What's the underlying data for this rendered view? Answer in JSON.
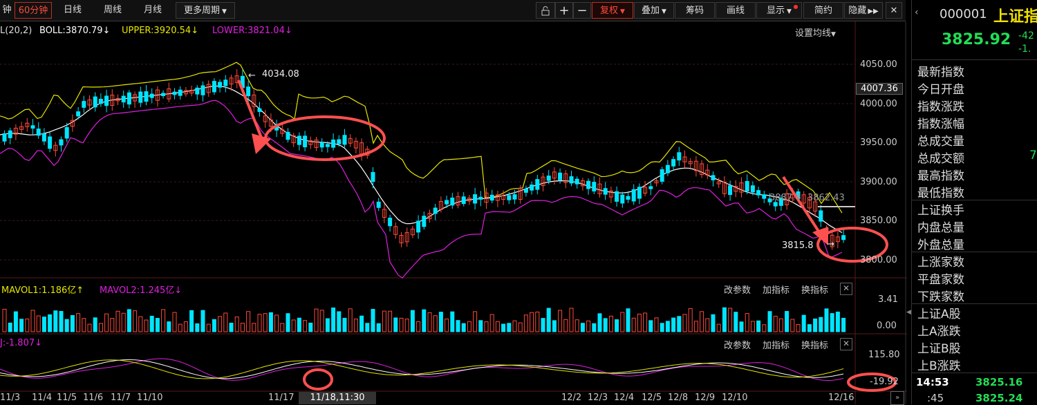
{
  "toolbar": {
    "periods": [
      "钟",
      "60分钟",
      "日线",
      "周线",
      "月线",
      "更多周期"
    ],
    "selected_period": "60分钟",
    "tools": [
      "复权",
      "叠加",
      "筹码",
      "画线",
      "显示",
      "简约",
      "隐藏"
    ]
  },
  "boll": {
    "name_prefix": "L(20,2)",
    "boll": "BOLL:3870.79",
    "upper": "UPPER:3920.54",
    "lower": "LOWER:3821.04",
    "arrow": "↓",
    "settings": "设置均线"
  },
  "price_axis": [
    "4050.00",
    "4000.00",
    "3950.00",
    "3900.00",
    "3850.00",
    "3800.00"
  ],
  "price_current_tag": "4007.36",
  "annotations": {
    "high": "4034.08",
    "low": "3815.8",
    "mid": "3887.4",
    "mid2": "3862.43"
  },
  "volume": {
    "mavol1": "MAVOL1:1.186亿",
    "mavol2": "MAVOL2:1.245亿",
    "axis": [
      "3.41",
      "0.00"
    ],
    "tools": [
      "改参数",
      "加指标",
      "换指标"
    ]
  },
  "osc": {
    "label": "J:-1.807",
    "axis": [
      "115.80",
      "-19.92"
    ],
    "tools": [
      "改参数",
      "加指标",
      "换指标"
    ]
  },
  "date_axis": [
    "11/3",
    "11/4",
    "11/5",
    "11/6",
    "11/7",
    "11/10",
    "11/17",
    "12/2",
    "12/3",
    "12/4",
    "12/5",
    "12/8",
    "12/9",
    "12/10",
    "12/16"
  ],
  "crosshair_time": "11/18,11:30",
  "quote": {
    "code": "000001",
    "name": "上证指",
    "price": "3825.92",
    "change": "-42",
    "pct": "-1.",
    "fields": [
      {
        "label": "最新指数",
        "value": ""
      },
      {
        "label": "今日开盘",
        "value": ""
      },
      {
        "label": "指数涨跌",
        "value": ""
      },
      {
        "label": "指数涨幅",
        "value": ""
      },
      {
        "label": "总成交量",
        "value": ""
      },
      {
        "label": "总成交额",
        "value": "7"
      },
      {
        "label": "最高指数",
        "value": ""
      },
      {
        "label": "最低指数",
        "value": ""
      },
      {
        "label": "上证换手",
        "value": ""
      },
      {
        "label": "内盘总量",
        "value": ""
      },
      {
        "label": "外盘总量",
        "value": ""
      },
      {
        "label": "上涨家数",
        "value": ""
      },
      {
        "label": "平盘家数",
        "value": ""
      },
      {
        "label": "下跌家数",
        "value": ""
      },
      {
        "label": "上证A股",
        "value": ""
      },
      {
        "label": "上A涨跌",
        "value": ""
      },
      {
        "label": "上证B股",
        "value": ""
      },
      {
        "label": "上B涨跌",
        "value": ""
      }
    ],
    "ticks": [
      {
        "time": "14:53",
        "price": "3825.16"
      },
      {
        "time": ":45",
        "price": "3825.24"
      }
    ]
  },
  "colors": {
    "up": "#ff4a3a",
    "down": "#00e5ff",
    "upper_band": "#e6e600",
    "lower_band": "#e020e0",
    "mid_band": "#ffffff",
    "annotation_red": "#ff5050",
    "quote_green": "#22dd55"
  }
}
